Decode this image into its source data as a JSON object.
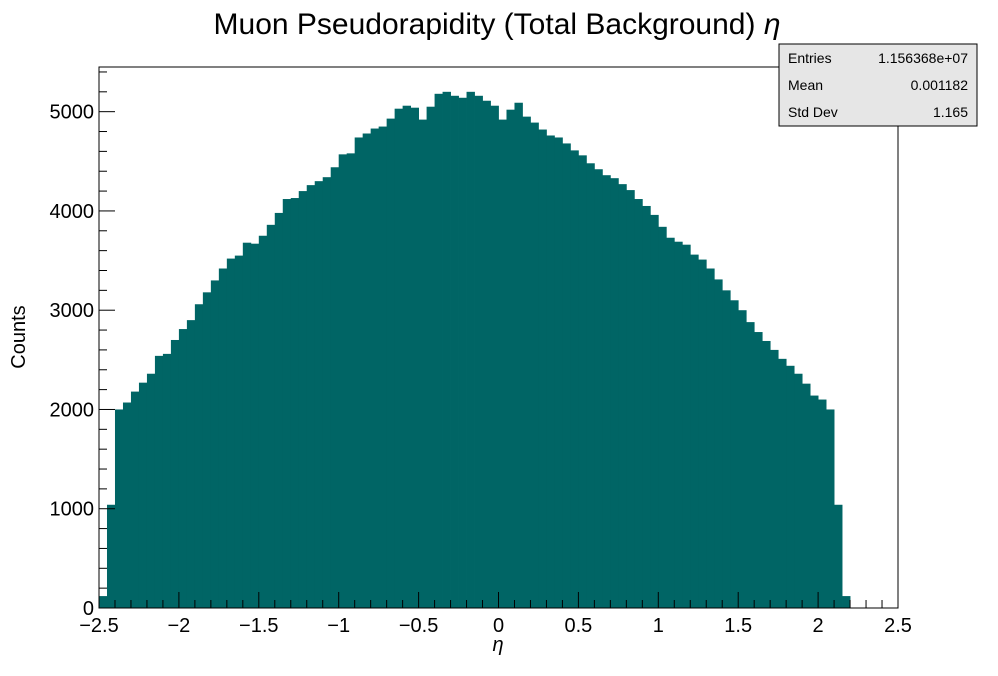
{
  "chart_data": {
    "type": "bar",
    "title": "Muon Pseudorapidity (Total Background) η",
    "title_main": "Muon Pseudorapidity (Total Background)",
    "title_symbol": "η",
    "xlabel": "η",
    "ylabel": "Counts",
    "xlim": [
      -2.5,
      2.5
    ],
    "ylim": [
      0,
      5450
    ],
    "xticks": [
      -2.5,
      -2,
      -1.5,
      -1,
      -0.5,
      0,
      0.5,
      1,
      1.5,
      2,
      2.5
    ],
    "xtick_labels": [
      "−2.5",
      "−2",
      "−1.5",
      "−1",
      "−0.5",
      "0",
      "0.5",
      "1",
      "1.5",
      "2",
      "2.5"
    ],
    "yticks": [
      0,
      1000,
      2000,
      3000,
      4000,
      5000
    ],
    "ytick_labels": [
      "0",
      "1000",
      "2000",
      "3000",
      "4000",
      "5000"
    ],
    "bin_width": 0.05,
    "bin_edges_start": -2.5,
    "fill_color": "#006565",
    "values": [
      120,
      1040,
      2000,
      2070,
      2180,
      2270,
      2360,
      2540,
      2560,
      2700,
      2810,
      2900,
      3060,
      3180,
      3300,
      3420,
      3520,
      3550,
      3680,
      3670,
      3750,
      3860,
      3980,
      4120,
      4130,
      4200,
      4260,
      4300,
      4340,
      4440,
      4570,
      4580,
      4740,
      4780,
      4830,
      4850,
      4930,
      5030,
      5060,
      5040,
      4920,
      5050,
      5180,
      5200,
      5160,
      5140,
      5200,
      5160,
      5110,
      5060,
      4920,
      5020,
      5090,
      4950,
      4890,
      4820,
      4760,
      4740,
      4680,
      4610,
      4560,
      4480,
      4420,
      4360,
      4330,
      4270,
      4210,
      4120,
      4050,
      3960,
      3840,
      3730,
      3690,
      3660,
      3560,
      3510,
      3420,
      3310,
      3200,
      3100,
      3000,
      2880,
      2780,
      2690,
      2600,
      2510,
      2440,
      2360,
      2260,
      2140,
      2100,
      2000,
      1040,
      120
    ],
    "legend": "none",
    "grid": false,
    "stats": [
      {
        "label": "Entries",
        "value": "1.156368e+07"
      },
      {
        "label": "Mean",
        "value": "0.001182"
      },
      {
        "label": "Std Dev",
        "value": "1.165"
      }
    ]
  }
}
